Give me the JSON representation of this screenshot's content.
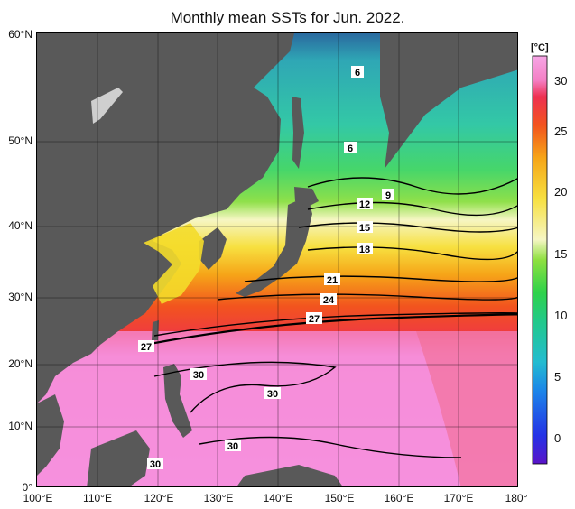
{
  "title": "Monthly mean SSTs for Jun. 2022.",
  "colorbar": {
    "unit": "[°C]",
    "ticks": [
      30,
      25,
      20,
      15,
      10,
      5,
      0
    ],
    "range": [
      -2,
      31
    ]
  },
  "axes": {
    "lat_labels": [
      "60°N",
      "50°N",
      "40°N",
      "30°N",
      "20°N",
      "10°N",
      "0°"
    ],
    "lon_labels": [
      "100°E",
      "110°E",
      "120°E",
      "130°E",
      "140°E",
      "150°E",
      "160°E",
      "170°E",
      "180°"
    ]
  },
  "contour_labels": [
    "6",
    "6",
    "9",
    "12",
    "15",
    "18",
    "21",
    "24",
    "27",
    "27",
    "30",
    "30",
    "30",
    "30"
  ],
  "colors": {
    "land": "#595959",
    "warm_pool": "#f590de",
    "hot": "#f5505a"
  }
}
